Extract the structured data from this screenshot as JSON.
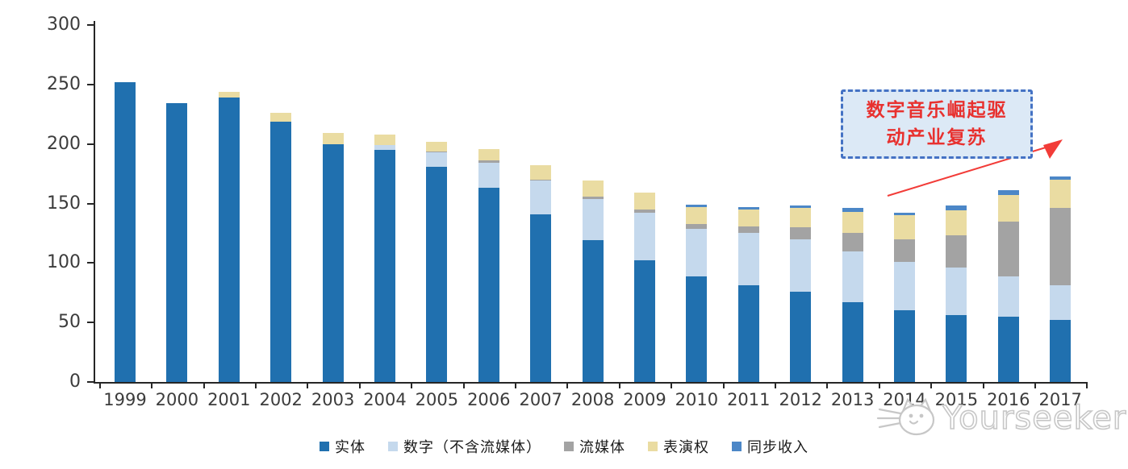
{
  "chart_data": {
    "type": "bar",
    "stacked": true,
    "title": "",
    "xlabel": "",
    "ylabel": "",
    "ylim": [
      0,
      300
    ],
    "yticks": [
      0,
      50,
      100,
      150,
      200,
      250,
      300
    ],
    "grid": false,
    "legend_position": "bottom",
    "categories": [
      "1999",
      "2000",
      "2001",
      "2002",
      "2003",
      "2004",
      "2005",
      "2006",
      "2007",
      "2008",
      "2009",
      "2010",
      "2011",
      "2012",
      "2013",
      "2014",
      "2015",
      "2016",
      "2017"
    ],
    "series": [
      {
        "name": "实体",
        "color": "#2070AF",
        "values": [
          252,
          234,
          239,
          219,
          200,
          195,
          181,
          163,
          141,
          119,
          102,
          89,
          81,
          76,
          67,
          60,
          56,
          55,
          52
        ]
      },
      {
        "name": "数字（不含流媒体）",
        "color": "#C5D9ED",
        "values": [
          0,
          0,
          0,
          0,
          0,
          4,
          12,
          21,
          28,
          35,
          40,
          40,
          44,
          44,
          43,
          41,
          40,
          34,
          29
        ]
      },
      {
        "name": "流媒体",
        "color": "#A3A3A3",
        "values": [
          0,
          0,
          0,
          0,
          0,
          0,
          1,
          2,
          1,
          2,
          3,
          4,
          6,
          10,
          15,
          19,
          27,
          46,
          65
        ]
      },
      {
        "name": "表演权",
        "color": "#EADCA2",
        "values": [
          0,
          0,
          5,
          7,
          9,
          9,
          8,
          10,
          12,
          13,
          14,
          14,
          14,
          16,
          18,
          20,
          21,
          22,
          24
        ]
      },
      {
        "name": "同步收入",
        "color": "#4C87C7",
        "values": [
          0,
          0,
          0,
          0,
          0,
          0,
          0,
          0,
          0,
          0,
          0,
          2,
          2,
          2,
          3,
          2,
          4,
          4,
          3
        ]
      }
    ],
    "totals": [
      252,
      234,
      244,
      226,
      209,
      208,
      202,
      196,
      182,
      169,
      159,
      149,
      147,
      148,
      146,
      142,
      148,
      161,
      173
    ]
  },
  "annotation": {
    "line1": "数字音乐崛起驱",
    "line2": "动产业复苏",
    "text_color": "#E8312F",
    "box_fill": "#DCE9F6",
    "box_border_color": "#4472C4",
    "arrow_color": "#F23C38"
  },
  "watermark": {
    "label": "Yourseeker",
    "icon": "cat-icon",
    "color": "#C7C7C7"
  }
}
